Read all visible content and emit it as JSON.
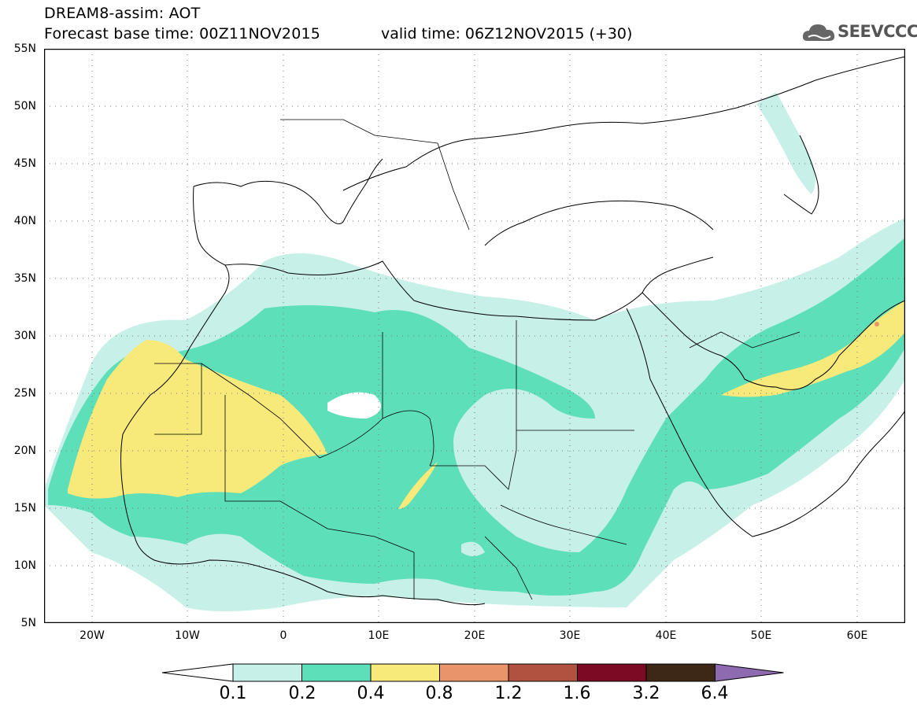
{
  "header": {
    "title_line1": "DREAM8-assim: AOT",
    "title_line2": "Forecast base time: 00Z11NOV2015",
    "valid_time": "valid time: 06Z12NOV2015 (+30)",
    "logo_text": "SEEVCCC"
  },
  "map": {
    "lat_labels": [
      "55N",
      "50N",
      "45N",
      "40N",
      "35N",
      "30N",
      "25N",
      "20N",
      "15N",
      "10N",
      "5N"
    ],
    "lon_labels": [
      "20W",
      "10W",
      "0",
      "10E",
      "20E",
      "30E",
      "40E",
      "50E",
      "60E"
    ],
    "lon_range": [
      -25,
      65
    ],
    "lat_range": [
      5,
      55
    ],
    "grid": "dotted"
  },
  "colorbar": {
    "labels": [
      "0.1",
      "0.2",
      "0.4",
      "0.8",
      "1.2",
      "1.6",
      "3.2",
      "6.4"
    ],
    "colors": [
      "#ffffff",
      "#c7f0e8",
      "#5ddfba",
      "#f7e97a",
      "#e9946a",
      "#b0523f",
      "#7d0a25",
      "#3d2716",
      "#8e6ab0"
    ]
  }
}
